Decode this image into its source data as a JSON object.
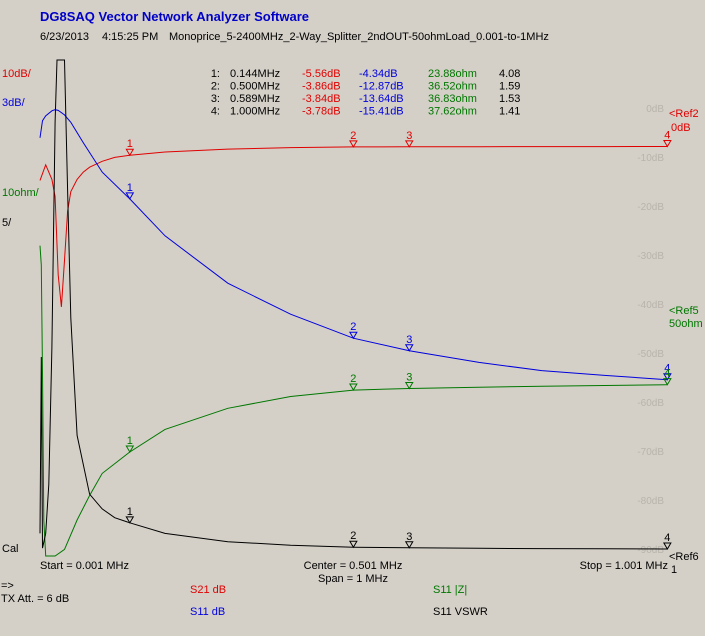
{
  "header": {
    "app_title": "DG8SAQ Vector Network Analyzer Software",
    "date": "6/23/2013",
    "time": "4:15:25 PM",
    "description": "Monoprice_5-2400MHz_2-Way_Splitter_2ndOUT-50ohmLoad_0.001-to-1MHz"
  },
  "left_labels": {
    "s21_scale": "10dB/",
    "s11db_scale": "3dB/",
    "z_scale": "10ohm/",
    "vswr_scale": "5/",
    "cal": "Cal"
  },
  "right_labels": {
    "ref2": "<Ref2",
    "ref2_value": "0dB",
    "ref5": "<Ref5",
    "ref5_value": "50ohm",
    "ref6": "<Ref6",
    "ref6_value": "1"
  },
  "axis": {
    "start_label": "Start = 0.001 MHz",
    "center_label": "Center = 0.501 MHz",
    "span_label": "Span = 1 MHz",
    "stop_label": "Stop = 1.001 MHz"
  },
  "bottom": {
    "arrow": "=>",
    "tx_att": "TX Att. = 6 dB",
    "legend_s21": "S21  dB",
    "legend_s11_db": "S11  dB",
    "legend_s11_z": "S11  |Z|",
    "legend_s11_vswr": "S11  VSWR"
  },
  "marker_table": [
    {
      "num": "1:",
      "freq": "0.144MHz",
      "s21": "-5.56dB",
      "s11": "-4.34dB",
      "z": "23.88ohm",
      "vswr": "4.08"
    },
    {
      "num": "2:",
      "freq": "0.500MHz",
      "s21": "-3.86dB",
      "s11": "-12.87dB",
      "z": "36.52ohm",
      "vswr": "1.59"
    },
    {
      "num": "3:",
      "freq": "0.589MHz",
      "s21": "-3.84dB",
      "s11": "-13.64dB",
      "z": "36.83ohm",
      "vswr": "1.53"
    },
    {
      "num": "4:",
      "freq": "1.000MHz",
      "s21": "-3.78dB",
      "s11": "-15.41dB",
      "z": "37.62ohm",
      "vswr": "1.41"
    }
  ],
  "colors": {
    "background": "#d4d0c8",
    "grid_text": "#b8b4ac",
    "s21": "#e00000",
    "s11_db": "#0000dd",
    "s11_z": "#007700",
    "s11_vswr": "#000000"
  },
  "chart_data": {
    "type": "line",
    "xlabel": "",
    "ylabel": "",
    "xlim": [
      0.001,
      1.001
    ],
    "gridlines": false,
    "y_tick_labels": [
      "0dB",
      "-10dB",
      "-20dB",
      "-30dB",
      "-40dB",
      "-50dB",
      "-60dB",
      "-70dB",
      "-80dB",
      "-90dB"
    ],
    "markers": [
      {
        "label": "1",
        "freq": 0.144
      },
      {
        "label": "2",
        "freq": 0.5
      },
      {
        "label": "3",
        "freq": 0.589
      },
      {
        "label": "4",
        "freq": 1.0
      }
    ],
    "series": [
      {
        "name": "S21  dB",
        "color": "#e00000",
        "unit": "dB",
        "scale_per_div": 10,
        "ref": 0,
        "x": [
          0.001,
          0.01,
          0.02,
          0.025,
          0.03,
          0.035,
          0.04,
          0.045,
          0.05,
          0.06,
          0.07,
          0.08,
          0.1,
          0.12,
          0.144,
          0.2,
          0.3,
          0.4,
          0.5,
          0.589,
          0.7,
          0.8,
          0.9,
          1.0
        ],
        "values": [
          -10.7,
          -7.5,
          -10.5,
          -14,
          -30,
          -36.5,
          -27,
          -17,
          -13,
          -10.5,
          -9,
          -8,
          -6.8,
          -6,
          -5.56,
          -4.9,
          -4.3,
          -4,
          -3.86,
          -3.84,
          -3.82,
          -3.8,
          -3.79,
          -3.78
        ]
      },
      {
        "name": "S11  dB",
        "color": "#0000dd",
        "unit": "dB",
        "scale_per_div": 3,
        "ref": 0,
        "x": [
          0.001,
          0.005,
          0.01,
          0.02,
          0.025,
          0.03,
          0.04,
          0.05,
          0.07,
          0.1,
          0.144,
          0.2,
          0.3,
          0.4,
          0.5,
          0.589,
          0.7,
          0.8,
          0.9,
          1.0
        ],
        "values": [
          -0.6,
          0.45,
          0.75,
          1.05,
          1.12,
          1.08,
          0.8,
          0.35,
          -0.9,
          -2.7,
          -4.34,
          -6.6,
          -9.5,
          -11.4,
          -12.87,
          -13.64,
          -14.35,
          -14.85,
          -15.15,
          -15.41
        ]
      },
      {
        "name": "S11  |Z|",
        "color": "#007700",
        "unit": "ohm",
        "scale_per_div": 10,
        "ref": 50,
        "x": [
          0.001,
          0.003,
          0.005,
          0.007,
          0.01,
          0.015,
          0.02,
          0.025,
          0.04,
          0.06,
          0.08,
          0.1,
          0.144,
          0.2,
          0.3,
          0.4,
          0.5,
          0.589,
          0.7,
          0.8,
          0.9,
          1.0
        ],
        "values": [
          66,
          62,
          40,
          10,
          2,
          0.8,
          0.2,
          0.2,
          4,
          10,
          15,
          19.5,
          23.88,
          28.5,
          32.8,
          35.2,
          36.52,
          36.83,
          37.1,
          37.3,
          37.45,
          37.62
        ]
      },
      {
        "name": "S11  VSWR",
        "color": "#000000",
        "unit": "",
        "scale_per_div": 5,
        "ref": 1,
        "x": [
          0.001,
          0.003,
          0.005,
          0.01,
          0.015,
          0.02,
          0.025,
          0.028,
          0.03,
          0.035,
          0.04,
          0.045,
          0.05,
          0.06,
          0.08,
          0.1,
          0.12,
          0.144,
          0.2,
          0.3,
          0.4,
          0.5,
          0.589,
          0.7,
          0.8,
          0.9,
          1.0
        ],
        "values": [
          3,
          21,
          1.5,
          3,
          8,
          22,
          45,
          52,
          55,
          60,
          52,
          38,
          25,
          13,
          7,
          5.5,
          4.6,
          4.08,
          3,
          2.15,
          1.8,
          1.59,
          1.53,
          1.48,
          1.45,
          1.43,
          1.41
        ]
      }
    ]
  }
}
